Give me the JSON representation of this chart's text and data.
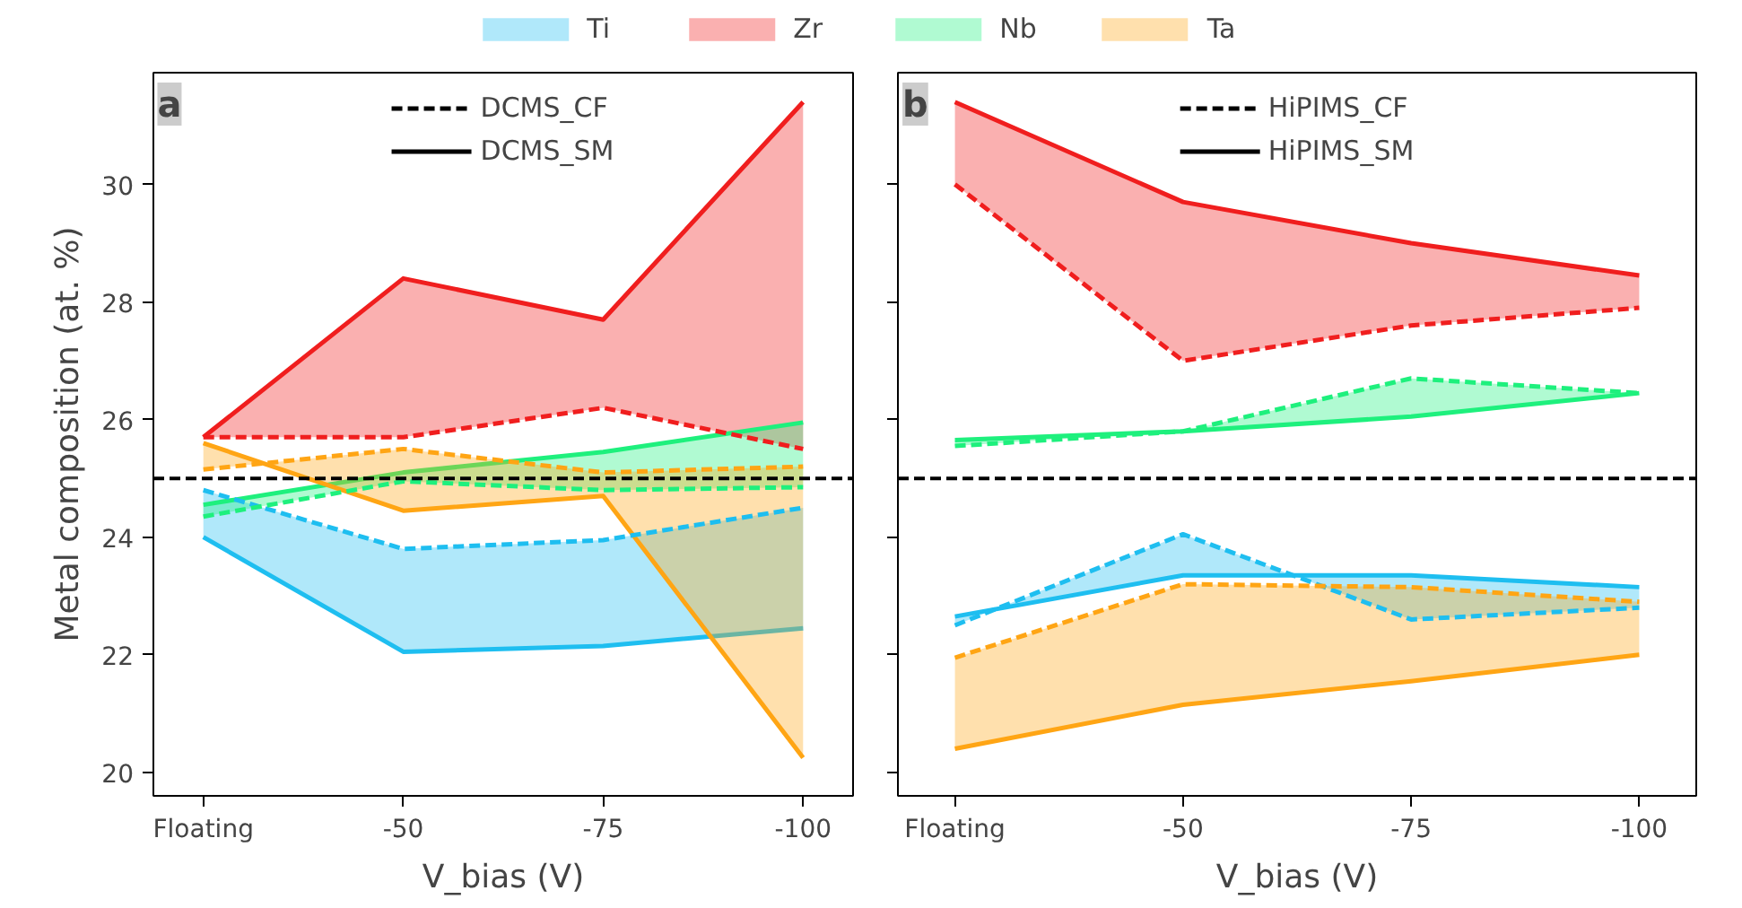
{
  "chart_data": [
    {
      "type": "line",
      "categories": [
        "Floating",
        "-50",
        "-75",
        "-100"
      ],
      "xlabel": "V_bias (V)",
      "ylabel": "Metal composition (at. %)",
      "ylim": [
        19.6,
        31.9
      ],
      "yticks": [
        20,
        22,
        24,
        26,
        28,
        30
      ],
      "legend": "top",
      "grid": false,
      "annotations": [
        "a"
      ],
      "ref_lines": [
        {
          "axis": "y",
          "value": 25,
          "color": "#000000",
          "line_style": "dashed"
        }
      ],
      "series": [
        {
          "name": "Ti",
          "color": "#1ebef0",
          "line_style": "solid",
          "values": [
            24.0,
            22.05,
            22.15,
            22.45
          ],
          "lower": [
            24.8,
            23.8,
            23.95,
            24.5
          ],
          "upper": [
            24.0,
            22.05,
            22.15,
            22.45
          ]
        },
        {
          "name": "Zr",
          "color": "#f01e1e",
          "line_style": "solid",
          "values": [
            25.7,
            28.4,
            27.7,
            31.4
          ],
          "lower": [
            25.7,
            25.7,
            26.2,
            25.5
          ],
          "upper": [
            25.7,
            28.4,
            27.7,
            31.4
          ]
        },
        {
          "name": "Nb",
          "color": "#1ef07d",
          "line_style": "solid",
          "values": [
            24.55,
            25.1,
            25.45,
            25.95
          ],
          "lower": [
            24.35,
            24.95,
            24.8,
            24.85
          ],
          "upper": [
            24.55,
            25.1,
            25.45,
            25.95
          ]
        },
        {
          "name": "Ta",
          "color": "#ffa514",
          "line_style": "solid",
          "values": [
            25.6,
            24.45,
            24.7,
            20.25
          ],
          "lower": [
            25.15,
            25.5,
            25.1,
            25.2
          ],
          "upper": [
            25.6,
            24.45,
            24.7,
            20.25
          ]
        },
        {
          "color": "#1ebef0",
          "line_style": "dashed",
          "values": [
            24.8,
            23.8,
            23.95,
            24.5
          ]
        },
        {
          "color": "#f01e1e",
          "line_style": "dashed",
          "values": [
            25.7,
            25.7,
            26.2,
            25.5
          ]
        },
        {
          "color": "#1ef07d",
          "line_style": "dashed",
          "values": [
            24.35,
            24.95,
            24.8,
            24.85
          ]
        },
        {
          "color": "#ffa514",
          "line_style": "dashed",
          "values": [
            25.15,
            25.5,
            25.1,
            25.2
          ]
        },
        {
          "name": "DCMS_CF",
          "color": "#000000",
          "line_style": "dashed",
          "values": [
            null,
            null,
            null,
            null
          ]
        },
        {
          "name": "DCMS_SM",
          "color": "#000000",
          "line_style": "solid",
          "values": [
            null,
            null,
            null,
            null
          ]
        }
      ]
    },
    {
      "type": "line",
      "categories": [
        "Floating",
        "-50",
        "-75",
        "-100"
      ],
      "xlabel": "V_bias (V)",
      "ylim": [
        19.6,
        31.9
      ],
      "yticks": [
        20,
        22,
        24,
        26,
        28,
        30
      ],
      "tick_labels": "x",
      "legend": "top",
      "grid": false,
      "annotations": [
        "b"
      ],
      "ref_lines": [
        {
          "axis": "y",
          "value": 25,
          "color": "#000000",
          "line_style": "dashed"
        }
      ],
      "series": [
        {
          "color": "#1ebef0",
          "line_style": "solid",
          "values": [
            22.65,
            23.35,
            23.35,
            23.15
          ],
          "lower": [
            22.5,
            24.05,
            22.6,
            22.8
          ],
          "upper": [
            22.65,
            23.35,
            23.35,
            23.15
          ]
        },
        {
          "color": "#f01e1e",
          "line_style": "solid",
          "values": [
            31.4,
            29.7,
            29.0,
            28.45
          ],
          "lower": [
            30.0,
            27.0,
            27.6,
            27.9
          ],
          "upper": [
            31.4,
            29.7,
            29.0,
            28.45
          ]
        },
        {
          "color": "#1ef07d",
          "line_style": "solid",
          "values": [
            25.65,
            25.8,
            26.05,
            26.45
          ],
          "lower": [
            25.55,
            25.8,
            26.7,
            26.45
          ],
          "upper": [
            25.65,
            25.8,
            26.05,
            26.45
          ]
        },
        {
          "color": "#ffa514",
          "line_style": "solid",
          "values": [
            20.4,
            21.15,
            21.55,
            22.0
          ],
          "lower": [
            21.95,
            23.2,
            23.15,
            22.9
          ],
          "upper": [
            20.4,
            21.15,
            21.55,
            22.0
          ]
        },
        {
          "color": "#1ebef0",
          "line_style": "dashed",
          "values": [
            22.5,
            24.05,
            22.6,
            22.8
          ]
        },
        {
          "color": "#f01e1e",
          "line_style": "dashed",
          "values": [
            30.0,
            27.0,
            27.6,
            27.9
          ]
        },
        {
          "color": "#1ef07d",
          "line_style": "dashed",
          "values": [
            25.55,
            25.8,
            26.7,
            26.45
          ]
        },
        {
          "color": "#ffa514",
          "line_style": "dashed",
          "values": [
            21.95,
            23.2,
            23.15,
            22.9
          ]
        },
        {
          "name": "HiPIMS_CF",
          "color": "#000000",
          "line_style": "dashed",
          "values": [
            null,
            null,
            null,
            null
          ]
        },
        {
          "name": "HiPIMS_SM",
          "color": "#000000",
          "line_style": "solid",
          "values": [
            null,
            null,
            null,
            null
          ]
        }
      ]
    }
  ]
}
